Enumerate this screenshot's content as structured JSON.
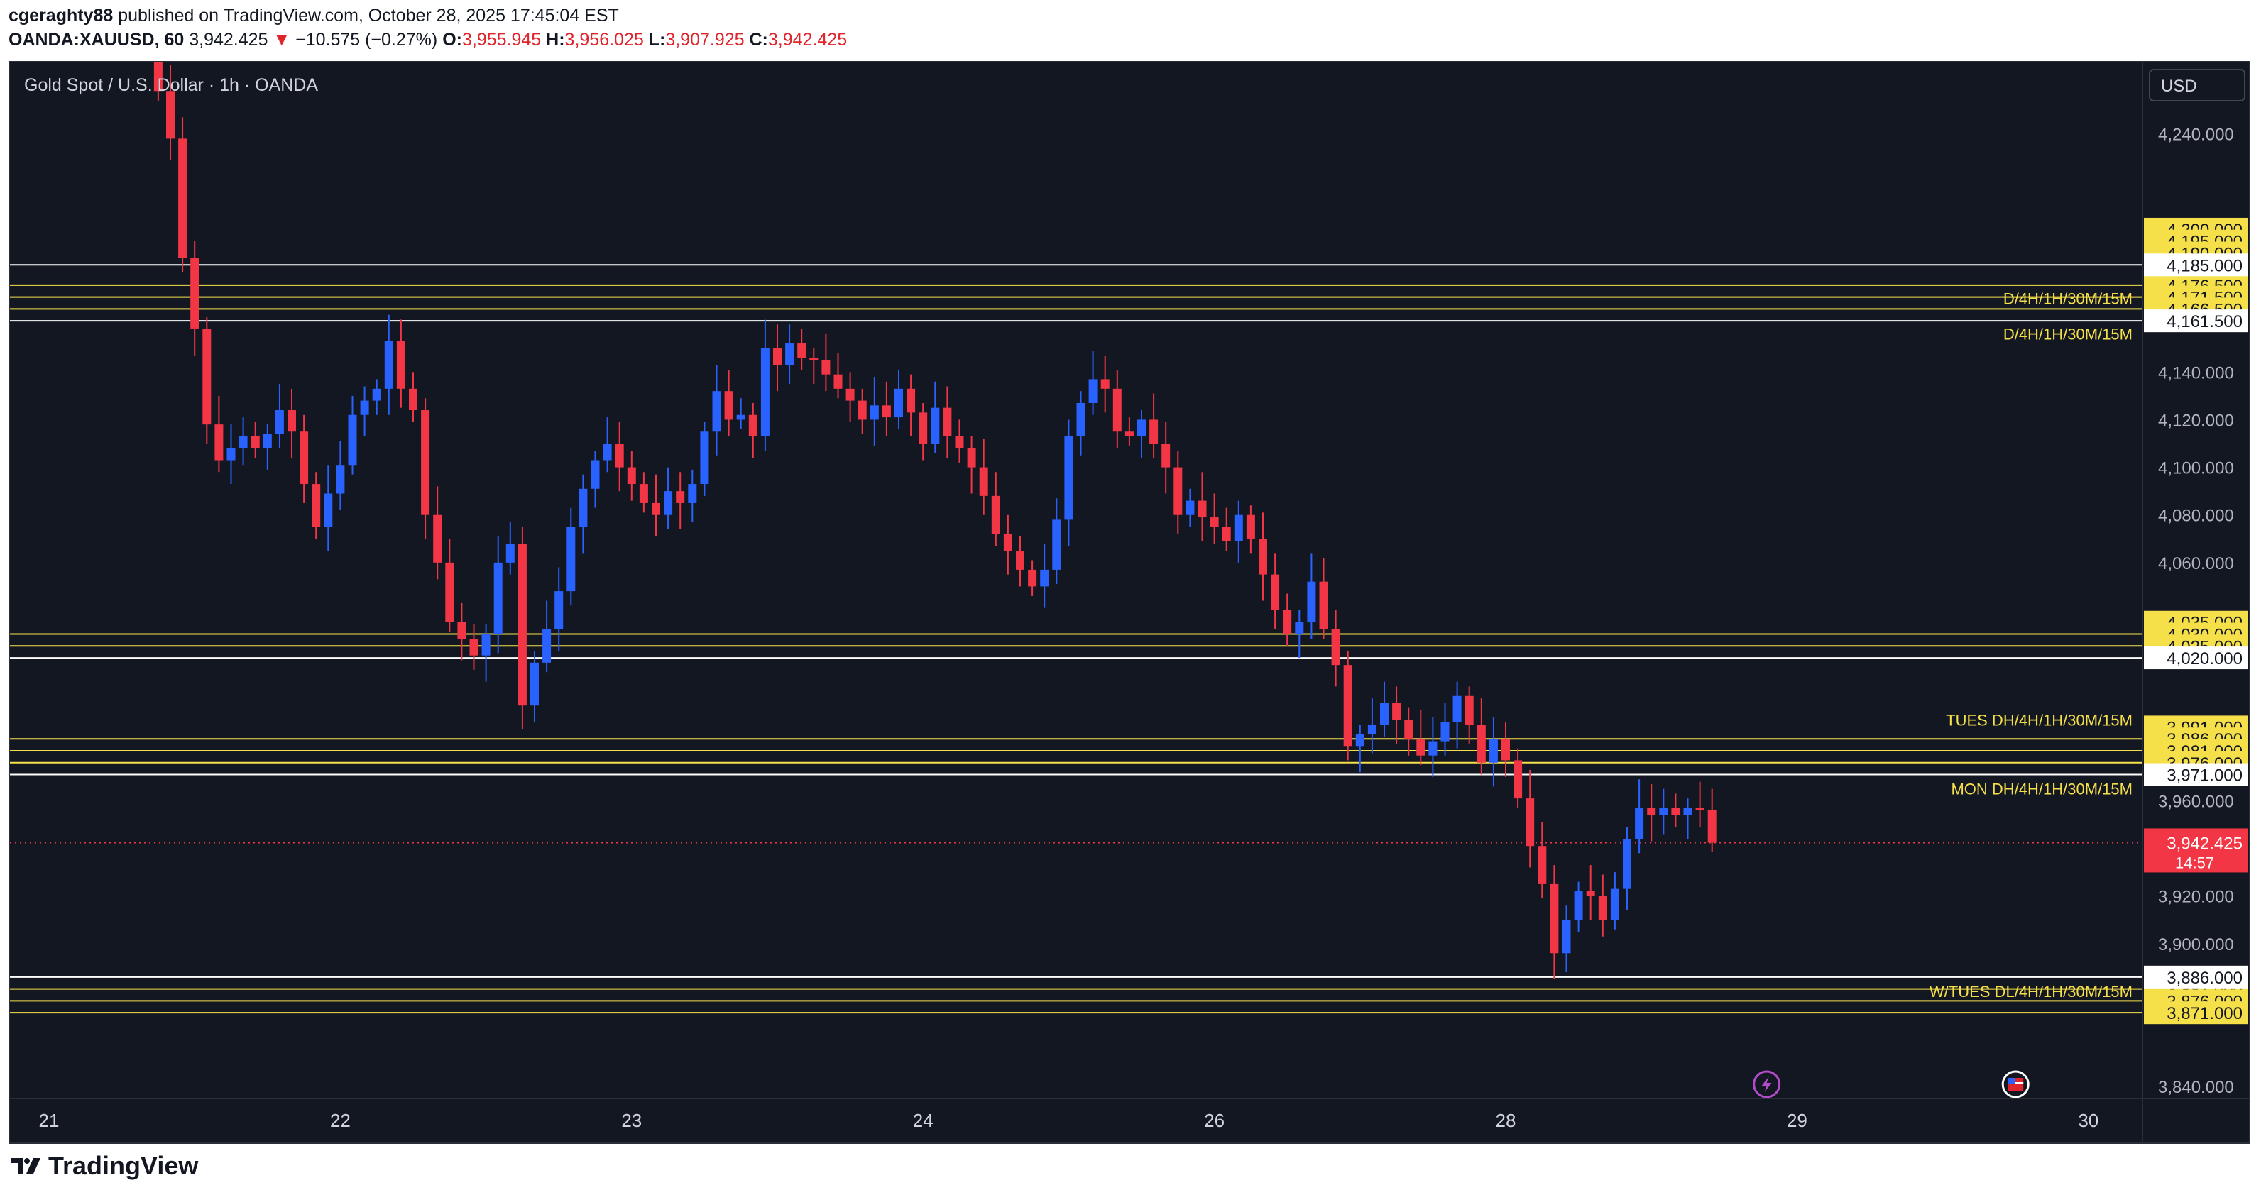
{
  "header": {
    "author": "cgeraghty88",
    "published_text": "published on TradingView.com, October 28, 2025 17:45:04 EST",
    "symbol": "OANDA:XAUUSD, 60",
    "last": "3,942.425",
    "change_arrow": "▼",
    "change": "−10.575 (−0.27%)",
    "o_label": "O:",
    "o": "3,955.945",
    "h_label": "H:",
    "h": "3,956.025",
    "l_label": "L:",
    "l": "3,907.925",
    "c_label": "C:",
    "c": "3,942.425"
  },
  "footer": {
    "brand": "TradingView",
    "brand_icon": "tradingview-logo-icon"
  },
  "chart_data": {
    "type": "candlestick",
    "title": "Gold Spot / U.S. Dollar · 1h · OANDA",
    "currency_button": "USD",
    "y_ticks": [
      "4,240.000",
      "4,140.000",
      "4,120.000",
      "4,100.000",
      "4,080.000",
      "4,060.000",
      "3,960.000",
      "3,920.000",
      "3,900.000",
      "3,840.000"
    ],
    "y_tick_values": [
      4240,
      4140,
      4120,
      4100,
      4080,
      4060,
      3960,
      3920,
      3900,
      3840
    ],
    "ylim": [
      3835,
      4270
    ],
    "x_labels": [
      "21",
      "22",
      "23",
      "24",
      "26",
      "28",
      "29",
      "30"
    ],
    "x_label_index": [
      0,
      24,
      48,
      72,
      96,
      120,
      144,
      168
    ],
    "last_price": {
      "value": 3942.425,
      "label": "3,942.425",
      "countdown": "14:57"
    },
    "yellow_levels": [
      {
        "value": 4200,
        "label": "4,200.000",
        "line": false
      },
      {
        "value": 4195,
        "label": "4,195.000",
        "line": false
      },
      {
        "value": 4190,
        "label": "4,190.000",
        "line": false
      },
      {
        "value": 4176.5,
        "label": "4,176.500",
        "line": true
      },
      {
        "value": 4171.5,
        "label": "4,171.500",
        "line": true
      },
      {
        "value": 4166.5,
        "label": "4,166.500",
        "line": true
      },
      {
        "value": 4035,
        "label": "4,035.000",
        "line": false
      },
      {
        "value": 4030,
        "label": "4,030.000",
        "line": true
      },
      {
        "value": 4025,
        "label": "4,025.000",
        "line": true
      },
      {
        "value": 3991,
        "label": "3,991.000",
        "line": false
      },
      {
        "value": 3986,
        "label": "3,986.000",
        "line": true
      },
      {
        "value": 3981,
        "label": "3,981.000",
        "line": true
      },
      {
        "value": 3976,
        "label": "3,976.000",
        "line": true
      },
      {
        "value": 3881,
        "label": "3,881.000",
        "line": true
      },
      {
        "value": 3876,
        "label": "3,876.000",
        "line": true
      },
      {
        "value": 3871,
        "label": "3,871.000",
        "line": true
      }
    ],
    "white_levels": [
      {
        "value": 4185,
        "label": "4,185.000"
      },
      {
        "value": 4161.5,
        "label": "4,161.500"
      },
      {
        "value": 4020,
        "label": "4,020.000"
      },
      {
        "value": 3971,
        "label": "3,971.000"
      },
      {
        "value": 3886,
        "label": "3,886.000"
      }
    ],
    "annotations": [
      {
        "text": "D/4H/1H/30M/15M",
        "value": 4171
      },
      {
        "text": "D/4H/1H/30M/15M",
        "value": 4156
      },
      {
        "text": "TUES DH/4H/1H/30M/15M",
        "value": 3994
      },
      {
        "text": "MON DH/4H/1H/30M/15M",
        "value": 3965
      },
      {
        "text": "W/TUES DL/4H/1H/30M/15M",
        "value": 3880
      }
    ],
    "event_markers": [
      {
        "icon": "lightning-icon",
        "index": 141.5
      },
      {
        "icon": "us-flag-icon",
        "index": 162
      }
    ],
    "colors": {
      "up": "#2962ff",
      "down": "#f23645",
      "level": "#f5e04a",
      "white_level": "#ffffff",
      "background": "#131722"
    },
    "candles_start_index": 9,
    "closes": [
      4258,
      4238,
      4188,
      4158,
      4118,
      4103,
      4108,
      4113,
      4108,
      4114,
      4124,
      4115,
      4093,
      4075,
      4089,
      4101,
      4122,
      4128,
      4133,
      4153,
      4133,
      4124,
      4080,
      4060,
      4035,
      4028,
      4021,
      4030,
      4060,
      4068,
      4000,
      4018,
      4032,
      4048,
      4075,
      4091,
      4103,
      4110,
      4100,
      4093,
      4085,
      4080,
      4090,
      4085,
      4093,
      4115,
      4132,
      4120,
      4122,
      4113,
      4150,
      4143,
      4152,
      4146,
      4145,
      4139,
      4133,
      4128,
      4120,
      4126,
      4121,
      4133,
      4123,
      4110,
      4125,
      4113,
      4108,
      4100,
      4088,
      4072,
      4065,
      4057,
      4050,
      4057,
      4078,
      4113,
      4127,
      4137,
      4133,
      4115,
      4113,
      4120,
      4110,
      4100,
      4080,
      4086,
      4079,
      4075,
      4069,
      4080,
      4070,
      4055,
      4040,
      4030,
      4035,
      4052,
      4032,
      4017,
      3983,
      3988,
      3992,
      4001,
      3994,
      3986,
      3979,
      3985,
      3993,
      4004,
      3992,
      3976,
      3986,
      3977,
      3961,
      3941,
      3925,
      3896,
      3910,
      3922,
      3920,
      3910,
      3923,
      3944,
      3957,
      3954,
      3957,
      3954,
      3957,
      3956,
      3942.425
    ],
    "x_axis_label": "",
    "y_axis_label": ""
  }
}
